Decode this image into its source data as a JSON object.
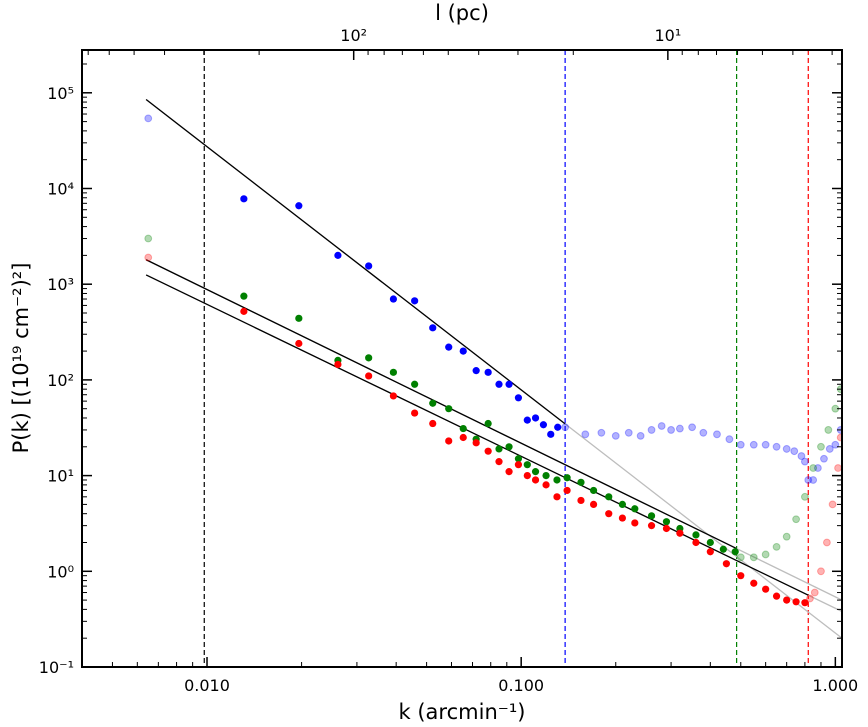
{
  "chart_data": {
    "type": "scatter",
    "xlabel": "k (arcmin⁻¹)",
    "ylabel": "P(k) [(10¹⁹ cm⁻²)²]",
    "top_xlabel": "l (pc)",
    "xscale": "log",
    "yscale": "log",
    "xlim": [
      0.004,
      1.05
    ],
    "ylim": [
      0.1,
      280000
    ],
    "x_ticks": [
      {
        "value": 0.01,
        "label": "0.010"
      },
      {
        "value": 0.1,
        "label": "0.100"
      },
      {
        "value": 1.0,
        "label": "1.000"
      }
    ],
    "y_ticks": [
      {
        "value": 0.1,
        "label": "10⁻¹"
      },
      {
        "value": 1,
        "label": "10⁰"
      },
      {
        "value": 10,
        "label": "10¹"
      },
      {
        "value": 100,
        "label": "10²"
      },
      {
        "value": 1000,
        "label": "10³"
      },
      {
        "value": 10000,
        "label": "10⁴"
      },
      {
        "value": 100000,
        "label": "10⁵"
      }
    ],
    "top_ticks": [
      {
        "k": 0.0293,
        "label": "10²"
      },
      {
        "k": 0.293,
        "label": "10¹"
      }
    ],
    "vlines": [
      {
        "x": 0.0098,
        "color": "#000000"
      },
      {
        "x": 0.138,
        "color": "#0000ff"
      },
      {
        "x": 0.485,
        "color": "#008000"
      },
      {
        "x": 0.82,
        "color": "#ff0000"
      }
    ],
    "fit_lines": [
      {
        "x": [
          0.0064,
          1.05
        ],
        "y": [
          85000,
          0.2
        ],
        "dark_until": 0.138
      },
      {
        "x": [
          0.0064,
          1.05
        ],
        "y": [
          1800,
          0.5
        ],
        "dark_until": 0.485
      },
      {
        "x": [
          0.0064,
          1.05
        ],
        "y": [
          1250,
          0.38
        ],
        "dark_until": 0.82
      }
    ],
    "series": [
      {
        "color": "#0000ff",
        "fit_points": [
          [
            0.0131,
            7800
          ],
          [
            0.0196,
            6600
          ],
          [
            0.0261,
            2000
          ],
          [
            0.0327,
            1550
          ],
          [
            0.0392,
            700
          ],
          [
            0.0458,
            670
          ],
          [
            0.0523,
            350
          ],
          [
            0.0588,
            220
          ],
          [
            0.0654,
            200
          ],
          [
            0.0719,
            125
          ],
          [
            0.0785,
            120
          ],
          [
            0.085,
            90
          ],
          [
            0.0915,
            90
          ],
          [
            0.098,
            65
          ],
          [
            0.1046,
            38
          ],
          [
            0.1111,
            40
          ],
          [
            0.1177,
            34
          ],
          [
            0.1242,
            27
          ],
          [
            0.1307,
            32
          ]
        ],
        "faded_points": [
          [
            0.0065,
            54000
          ],
          [
            0.138,
            32
          ],
          [
            0.16,
            27
          ],
          [
            0.18,
            28
          ],
          [
            0.2,
            26
          ],
          [
            0.22,
            28
          ],
          [
            0.24,
            26
          ],
          [
            0.26,
            30
          ],
          [
            0.28,
            33
          ],
          [
            0.3,
            30
          ],
          [
            0.32,
            31
          ],
          [
            0.35,
            32
          ],
          [
            0.38,
            28
          ],
          [
            0.42,
            27
          ],
          [
            0.46,
            24
          ],
          [
            0.5,
            21
          ],
          [
            0.55,
            21
          ],
          [
            0.6,
            21
          ],
          [
            0.65,
            20
          ],
          [
            0.7,
            19
          ],
          [
            0.74,
            18
          ],
          [
            0.78,
            16
          ],
          [
            0.8,
            14
          ],
          [
            0.82,
            9
          ],
          [
            0.85,
            9
          ],
          [
            0.88,
            12
          ],
          [
            0.92,
            15
          ],
          [
            0.96,
            19
          ],
          [
            1.0,
            21
          ],
          [
            1.04,
            30
          ]
        ]
      },
      {
        "color": "#008000",
        "fit_points": [
          [
            0.0131,
            750
          ],
          [
            0.0196,
            440
          ],
          [
            0.0261,
            160
          ],
          [
            0.0327,
            170
          ],
          [
            0.0392,
            120
          ],
          [
            0.0458,
            90
          ],
          [
            0.0523,
            57
          ],
          [
            0.0588,
            50
          ],
          [
            0.0654,
            31
          ],
          [
            0.0719,
            24
          ],
          [
            0.0785,
            35
          ],
          [
            0.085,
            19
          ],
          [
            0.0915,
            20
          ],
          [
            0.098,
            15
          ],
          [
            0.1046,
            13
          ],
          [
            0.1111,
            11
          ],
          [
            0.12,
            10
          ],
          [
            0.13,
            9
          ],
          [
            0.14,
            9.5
          ],
          [
            0.155,
            8.5
          ],
          [
            0.17,
            7
          ],
          [
            0.19,
            6
          ],
          [
            0.21,
            5
          ],
          [
            0.23,
            4.5
          ],
          [
            0.26,
            3.8
          ],
          [
            0.29,
            3.3
          ],
          [
            0.32,
            2.8
          ],
          [
            0.36,
            2.4
          ],
          [
            0.4,
            2
          ],
          [
            0.44,
            1.7
          ],
          [
            0.48,
            1.6
          ]
        ],
        "faded_points": [
          [
            0.0065,
            3000
          ],
          [
            0.5,
            1.4
          ],
          [
            0.55,
            1.4
          ],
          [
            0.6,
            1.5
          ],
          [
            0.65,
            1.8
          ],
          [
            0.7,
            2.3
          ],
          [
            0.75,
            3.5
          ],
          [
            0.8,
            6
          ],
          [
            0.85,
            12
          ],
          [
            0.9,
            20
          ],
          [
            0.95,
            30
          ],
          [
            1.0,
            50
          ],
          [
            1.04,
            80
          ]
        ]
      },
      {
        "color": "#ff0000",
        "fit_points": [
          [
            0.0131,
            520
          ],
          [
            0.0196,
            240
          ],
          [
            0.0261,
            145
          ],
          [
            0.0327,
            110
          ],
          [
            0.0392,
            68
          ],
          [
            0.0458,
            45
          ],
          [
            0.0523,
            35
          ],
          [
            0.0588,
            23
          ],
          [
            0.0654,
            25
          ],
          [
            0.0719,
            22
          ],
          [
            0.0785,
            18
          ],
          [
            0.085,
            14
          ],
          [
            0.0915,
            11
          ],
          [
            0.098,
            13
          ],
          [
            0.1046,
            10
          ],
          [
            0.1111,
            9
          ],
          [
            0.12,
            8
          ],
          [
            0.13,
            6
          ],
          [
            0.14,
            7
          ],
          [
            0.155,
            5.5
          ],
          [
            0.17,
            5
          ],
          [
            0.19,
            4
          ],
          [
            0.21,
            3.6
          ],
          [
            0.23,
            3.2
          ],
          [
            0.26,
            3
          ],
          [
            0.29,
            2.8
          ],
          [
            0.32,
            2.5
          ],
          [
            0.36,
            2
          ],
          [
            0.4,
            1.6
          ],
          [
            0.45,
            1.2
          ],
          [
            0.5,
            0.9
          ],
          [
            0.55,
            0.75
          ],
          [
            0.6,
            0.65
          ],
          [
            0.65,
            0.55
          ],
          [
            0.7,
            0.5
          ],
          [
            0.75,
            0.48
          ],
          [
            0.8,
            0.47
          ]
        ],
        "faded_points": [
          [
            0.0065,
            1900
          ],
          [
            0.83,
            0.52
          ],
          [
            0.86,
            0.6
          ],
          [
            0.9,
            1
          ],
          [
            0.94,
            2
          ],
          [
            0.98,
            5
          ],
          [
            1.02,
            12
          ],
          [
            1.04,
            25
          ]
        ]
      }
    ]
  }
}
